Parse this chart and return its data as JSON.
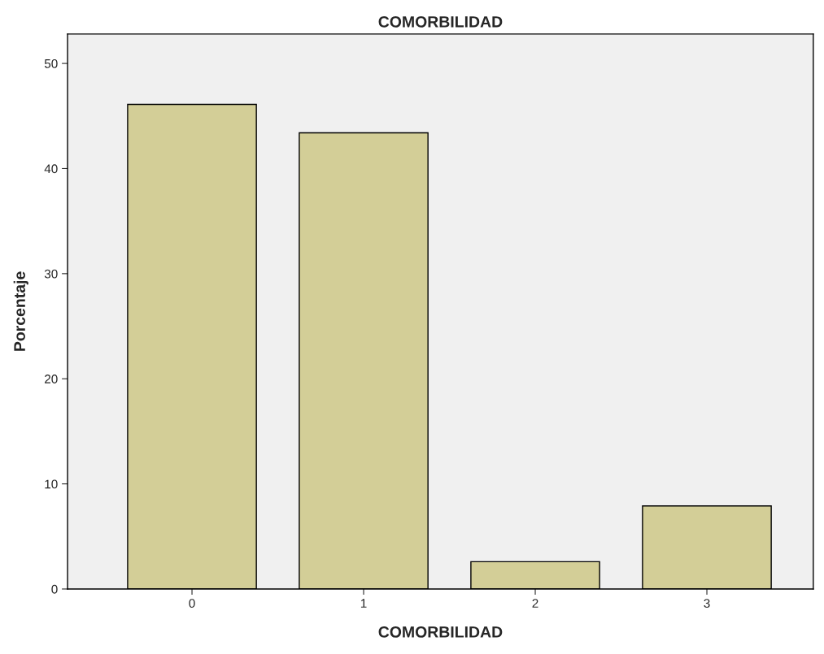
{
  "chart_data": {
    "type": "bar",
    "title": "COMORBILIDAD",
    "xlabel": "COMORBILIDAD",
    "ylabel": "Porcentaje",
    "categories": [
      "0",
      "1",
      "2",
      "3"
    ],
    "values": [
      46.1,
      43.4,
      2.6,
      7.9
    ],
    "color": "#d3ce97",
    "ylim": [
      0,
      52.8
    ],
    "yticks": [
      0,
      10,
      20,
      30,
      40,
      50
    ],
    "grid": false,
    "legend": false
  }
}
